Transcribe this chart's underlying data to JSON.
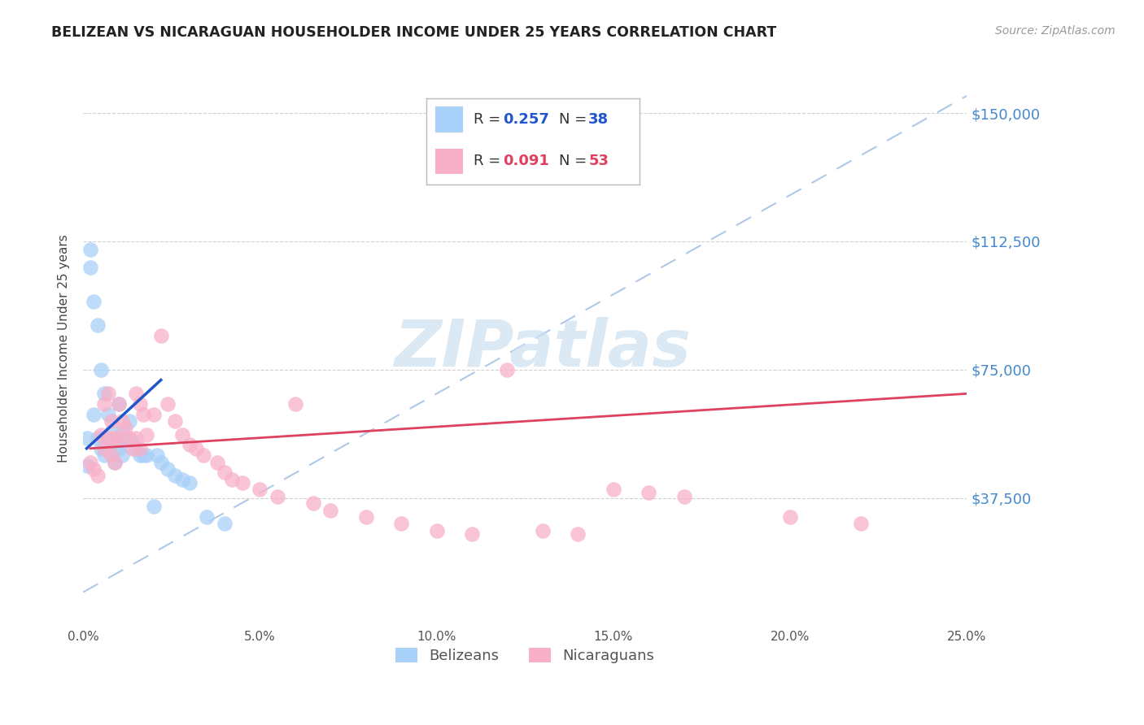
{
  "title": "BELIZEAN VS NICARAGUAN HOUSEHOLDER INCOME UNDER 25 YEARS CORRELATION CHART",
  "source": "Source: ZipAtlas.com",
  "ylabel": "Householder Income Under 25 years",
  "xlim": [
    0.0,
    0.25
  ],
  "ylim": [
    0,
    162500
  ],
  "ytick_values": [
    0,
    37500,
    75000,
    112500,
    150000
  ],
  "ytick_labels": [
    "",
    "$37,500",
    "$75,000",
    "$112,500",
    "$150,000"
  ],
  "background_color": "#ffffff",
  "grid_color": "#d0d0d0",
  "belizean_color": "#a8d0f8",
  "nicaraguan_color": "#f8b0c8",
  "belizean_line_color": "#2255cc",
  "nicaraguan_line_color": "#e04060",
  "diagonal_color": "#b0c8e8",
  "watermark_color": "#cce0f0",
  "bel_R": 0.257,
  "bel_N": 38,
  "nic_R": 0.091,
  "nic_N": 53,
  "belizean_x": [
    0.001,
    0.001,
    0.002,
    0.002,
    0.003,
    0.003,
    0.004,
    0.004,
    0.005,
    0.005,
    0.006,
    0.006,
    0.007,
    0.007,
    0.008,
    0.008,
    0.009,
    0.009,
    0.01,
    0.01,
    0.011,
    0.011,
    0.012,
    0.013,
    0.014,
    0.015,
    0.016,
    0.017,
    0.018,
    0.02,
    0.021,
    0.022,
    0.024,
    0.026,
    0.028,
    0.03,
    0.035,
    0.04
  ],
  "belizean_y": [
    55000,
    47000,
    110000,
    105000,
    95000,
    62000,
    88000,
    55000,
    75000,
    52000,
    68000,
    50000,
    62000,
    55000,
    57000,
    50000,
    54000,
    48000,
    65000,
    52000,
    57000,
    50000,
    55000,
    60000,
    54000,
    52000,
    50000,
    50000,
    50000,
    35000,
    50000,
    48000,
    46000,
    44000,
    43000,
    42000,
    32000,
    30000
  ],
  "nicaraguan_x": [
    0.002,
    0.003,
    0.004,
    0.005,
    0.006,
    0.006,
    0.007,
    0.007,
    0.008,
    0.008,
    0.009,
    0.009,
    0.01,
    0.01,
    0.011,
    0.012,
    0.013,
    0.014,
    0.015,
    0.015,
    0.016,
    0.016,
    0.017,
    0.018,
    0.02,
    0.022,
    0.024,
    0.026,
    0.028,
    0.03,
    0.032,
    0.034,
    0.038,
    0.04,
    0.042,
    0.045,
    0.05,
    0.055,
    0.06,
    0.065,
    0.07,
    0.08,
    0.09,
    0.1,
    0.11,
    0.12,
    0.13,
    0.14,
    0.15,
    0.16,
    0.17,
    0.2,
    0.22
  ],
  "nicaraguan_y": [
    48000,
    46000,
    44000,
    56000,
    65000,
    52000,
    68000,
    55000,
    60000,
    50000,
    55000,
    48000,
    65000,
    55000,
    60000,
    58000,
    55000,
    52000,
    68000,
    55000,
    65000,
    52000,
    62000,
    56000,
    62000,
    85000,
    65000,
    60000,
    56000,
    53000,
    52000,
    50000,
    48000,
    45000,
    43000,
    42000,
    40000,
    38000,
    65000,
    36000,
    34000,
    32000,
    30000,
    28000,
    27000,
    75000,
    28000,
    27000,
    40000,
    39000,
    38000,
    32000,
    30000
  ]
}
